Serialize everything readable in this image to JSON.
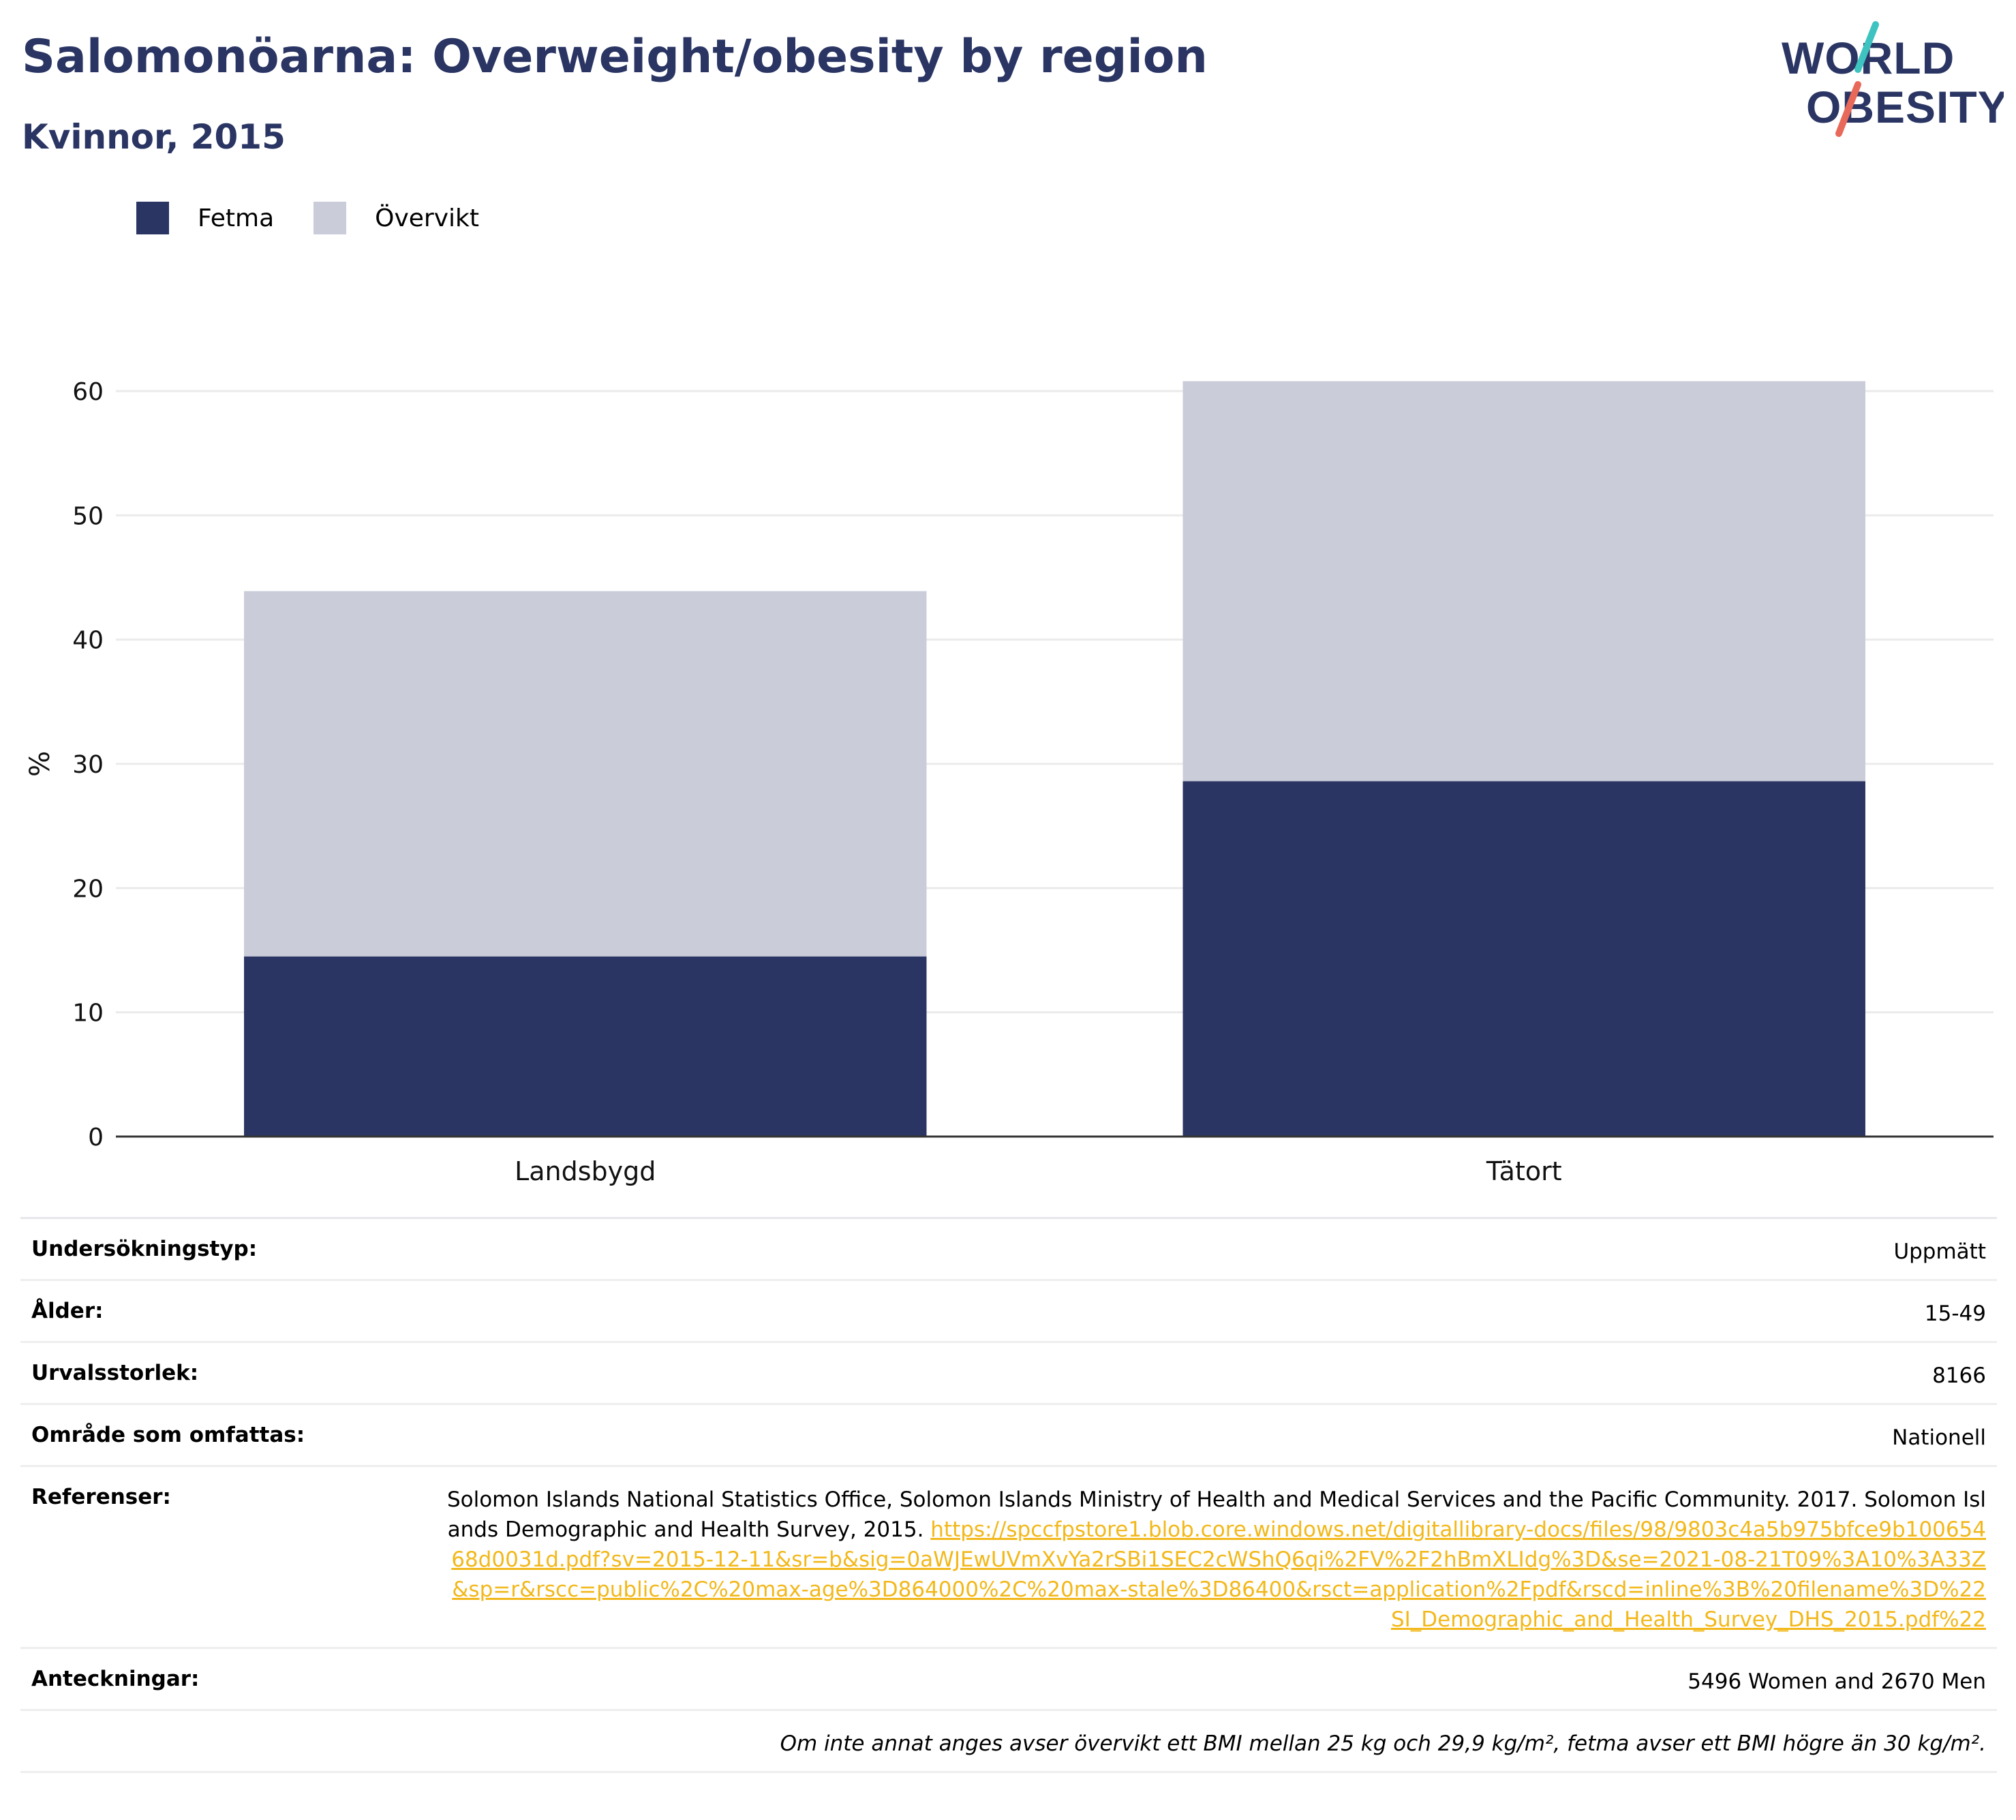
{
  "header": {
    "title": "Salomonöarna: Overweight/obesity by region",
    "subtitle": "Kvinnor, 2015"
  },
  "logo": {
    "line1": "WORLD",
    "line2": "OBESITY"
  },
  "colors": {
    "fetma": "#2a3563",
    "overvikt": "#cacdd9",
    "title": "#2a3563",
    "link": "#f2b81b",
    "logo_teal": "#3ec3c1",
    "logo_red": "#e8695a"
  },
  "legend": [
    {
      "label": "Fetma",
      "color": "#2a3563"
    },
    {
      "label": "Övervikt",
      "color": "#cacdd9"
    }
  ],
  "chart_data": {
    "type": "bar",
    "stacked": true,
    "categories": [
      "Landsbygd",
      "Tätort"
    ],
    "series": [
      {
        "name": "Fetma",
        "values": [
          14.5,
          28.6
        ]
      },
      {
        "name": "Övervikt",
        "values": [
          29.4,
          32.2
        ]
      }
    ],
    "ylabel": "%",
    "ylim": [
      0,
      63
    ],
    "yticks": [
      0,
      10,
      20,
      30,
      40,
      50,
      60
    ],
    "grid": true,
    "legend_position": "top-left"
  },
  "info": {
    "survey_type": {
      "label": "Undersökningstyp:",
      "value": "Uppmätt"
    },
    "age": {
      "label": "Ålder:",
      "value": "15-49"
    },
    "sample_size": {
      "label": "Urvalsstorlek:",
      "value": "8166"
    },
    "area": {
      "label": "Område som omfattas:",
      "value": "Nationell"
    },
    "references": {
      "label": "Referenser:",
      "text": "Solomon Islands National Statistics Office, Solomon Islands Ministry of Health and Medical Services and the Pacific Community. 2017. Solomon Islands Demographic and Health Survey, 2015. ",
      "link": "https://spccfpstore1.blob.core.windows.net/digitallibrary-docs/files/98/9803c4a5b975bfce9b10065468d0031d.pdf?sv=2015-12-11&sr=b&sig=0aWJEwUVmXvYa2rSBi1SEC2cWShQ6qi%2FV%2F2hBmXLIdg%3D&se=2021-08-21T09%3A10%3A33Z&sp=r&rscc=public%2C%20max-age%3D864000%2C%20max-stale%3D86400&rsct=application%2Fpdf&rscd=inline%3B%20filename%3D%22SI_Demographic_and_Health_Survey_DHS_2015.pdf%22"
    },
    "notes": {
      "label": "Anteckningar:",
      "value": "5496 Women and 2670 Men"
    },
    "footnote": "Om inte annat anges avser övervikt ett BMI mellan 25 kg och 29,9 kg/m², fetma avser ett BMI högre än 30 kg/m²."
  }
}
